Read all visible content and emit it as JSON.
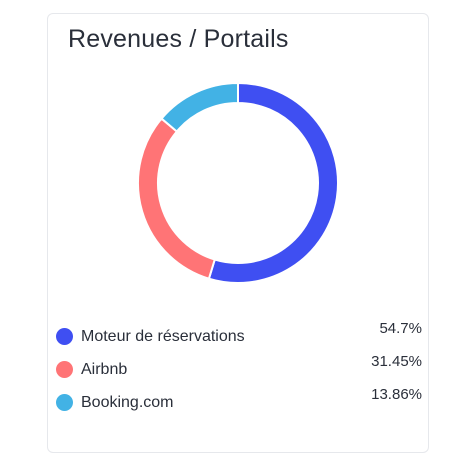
{
  "card": {
    "title": "Revenues / Portails"
  },
  "chart_data": {
    "type": "pie",
    "style": "donut",
    "title": "Revenues / Portails",
    "categories": [
      "Moteur de réservations",
      "Airbnb",
      "Booking.com"
    ],
    "values": [
      54.7,
      31.45,
      13.86
    ],
    "value_labels": [
      "54.7%",
      "31.45%",
      "13.86%"
    ],
    "colors": [
      "#3f4ff2",
      "#ff7476",
      "#42b2e5"
    ],
    "legend_placement": "bottom",
    "start_angle_deg": 0,
    "direction": "clockwise"
  }
}
